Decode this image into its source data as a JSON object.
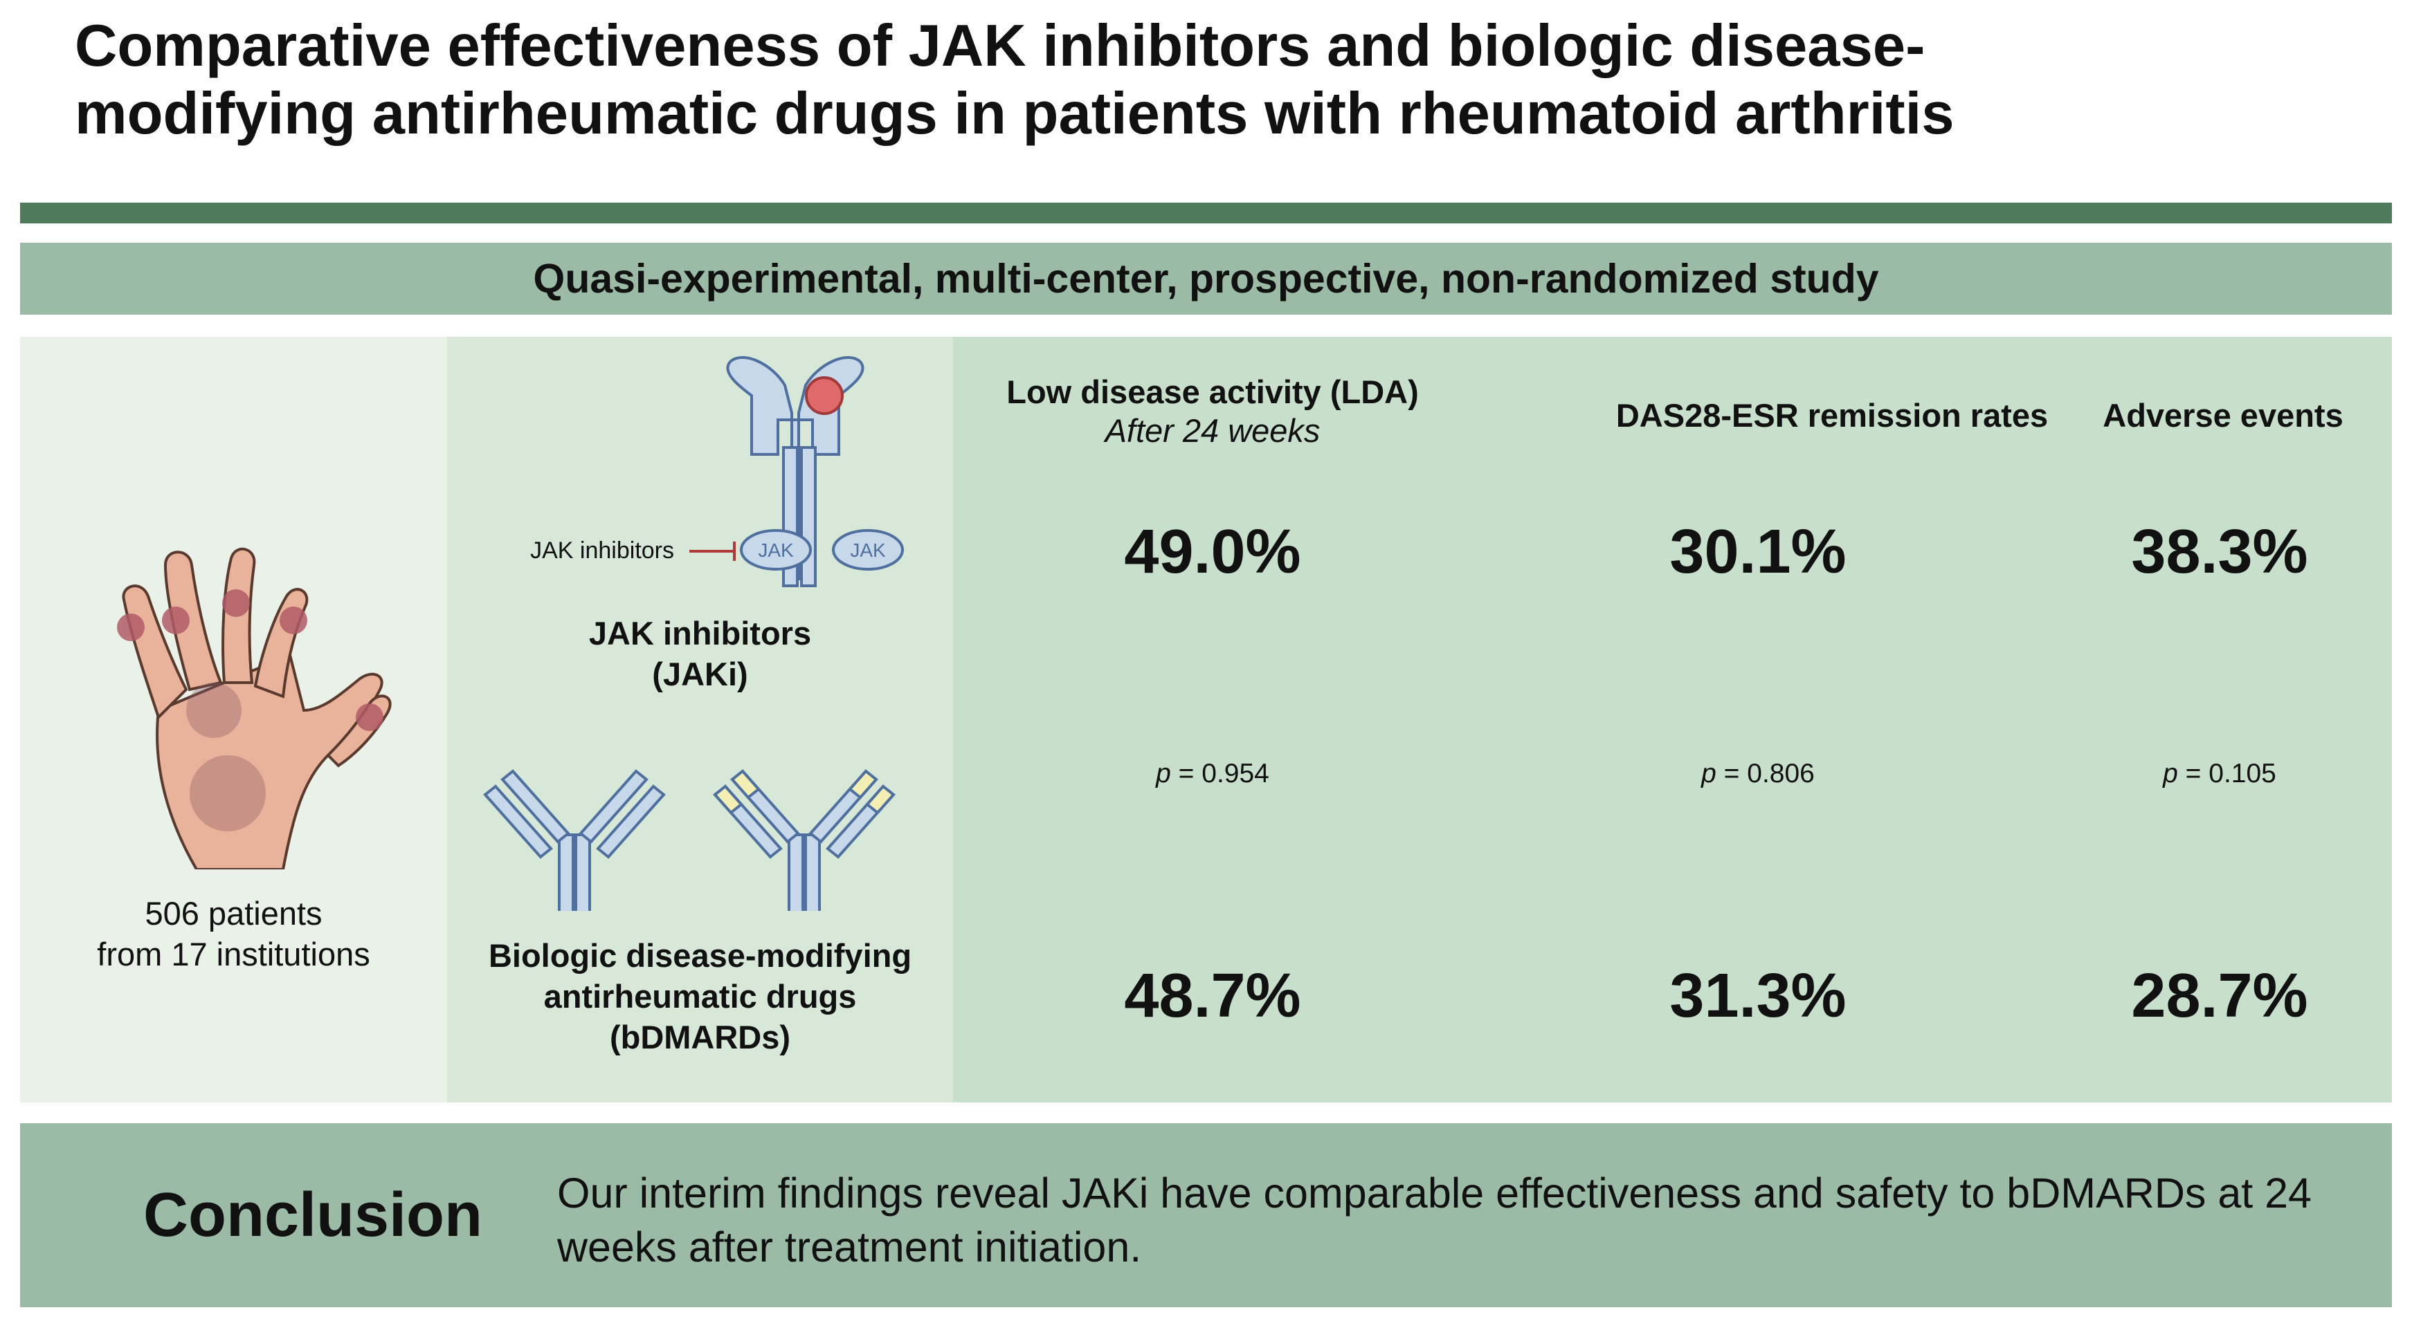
{
  "title": {
    "line1": "Comparative effectiveness of JAK inhibitors and biologic disease-",
    "line2": "modifying antirheumatic drugs in patients with rheumatoid arthritis"
  },
  "study_design": "Quasi-experimental, multi-center, prospective, non-randomized study",
  "patients": {
    "line1": "506 patients",
    "line2": "from 17 institutions"
  },
  "groups": {
    "jak_arrow_label": "JAK inhibitors",
    "receptor_label_left": "JAK",
    "receptor_label_right": "JAK",
    "jaki_line1": "JAK inhibitors",
    "jaki_line2": "(JAKi)",
    "bdmard_line1": "Biologic disease-modifying",
    "bdmard_line2": "antirheumatic drugs",
    "bdmard_line3": "(bDMARDs)"
  },
  "outcomes": [
    {
      "heading": "Low disease activity (LDA)",
      "subheading": "After 24 weeks",
      "jaki": "49.0%",
      "bdmard": "48.7%",
      "p_label": "p",
      "p_value": " = 0.954"
    },
    {
      "heading": "DAS28-ESR remission rates",
      "subheading": "",
      "jaki": "30.1%",
      "bdmard": "31.3%",
      "p_label": "p",
      "p_value": " = 0.806"
    },
    {
      "heading": "Adverse events",
      "subheading": "",
      "jaki": "38.3%",
      "bdmard": "28.7%",
      "p_label": "p",
      "p_value": " = 0.105"
    }
  ],
  "conclusion": {
    "label": "Conclusion",
    "text": "Our interim findings reveal JAKi have comparable effectiveness and safety to bDMARDs at 24 weeks after treatment initiation."
  },
  "colors": {
    "dark_green": "#4f7a5c",
    "mid_green": "#9bbba7",
    "panel_light": "#e9f1e8",
    "receptor_blue": "#c6d8ea",
    "jak_red": "#e06a6a",
    "antibody_yellow": "#f3efb4"
  }
}
